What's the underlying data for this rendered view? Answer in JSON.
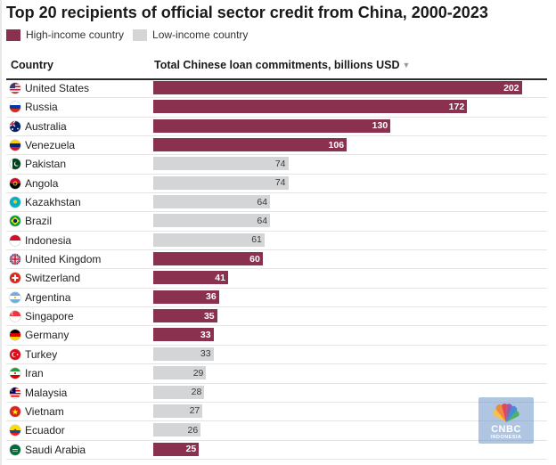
{
  "colors": {
    "high": "#8a3150",
    "low": "#d3d5d6"
  },
  "chart_data": {
    "type": "bar",
    "orientation": "horizontal",
    "title": "Top 20 recipients of official sector credit from China, 2000-2023",
    "legend": [
      {
        "key": "high",
        "label": "High-income country"
      },
      {
        "key": "low",
        "label": "Low-income country"
      }
    ],
    "columns": {
      "country": "Country",
      "value": "Total Chinese loan commitments, billions USD"
    },
    "xlim": [
      0,
      210
    ],
    "rows": [
      {
        "country": "United States",
        "value": 202,
        "group": "high",
        "flag": "flag-us-icon"
      },
      {
        "country": "Russia",
        "value": 172,
        "group": "high",
        "flag": "flag-ru-icon"
      },
      {
        "country": "Australia",
        "value": 130,
        "group": "high",
        "flag": "flag-au-icon"
      },
      {
        "country": "Venezuela",
        "value": 106,
        "group": "high",
        "flag": "flag-ve-icon"
      },
      {
        "country": "Pakistan",
        "value": 74,
        "group": "low",
        "flag": "flag-pk-icon"
      },
      {
        "country": "Angola",
        "value": 74,
        "group": "low",
        "flag": "flag-ao-icon"
      },
      {
        "country": "Kazakhstan",
        "value": 64,
        "group": "low",
        "flag": "flag-kz-icon"
      },
      {
        "country": "Brazil",
        "value": 64,
        "group": "low",
        "flag": "flag-br-icon"
      },
      {
        "country": "Indonesia",
        "value": 61,
        "group": "low",
        "flag": "flag-id-icon"
      },
      {
        "country": "United Kingdom",
        "value": 60,
        "group": "high",
        "flag": "flag-gb-icon"
      },
      {
        "country": "Switzerland",
        "value": 41,
        "group": "high",
        "flag": "flag-ch-icon"
      },
      {
        "country": "Argentina",
        "value": 36,
        "group": "high",
        "flag": "flag-ar-icon"
      },
      {
        "country": "Singapore",
        "value": 35,
        "group": "high",
        "flag": "flag-sg-icon"
      },
      {
        "country": "Germany",
        "value": 33,
        "group": "high",
        "flag": "flag-de-icon"
      },
      {
        "country": "Turkey",
        "value": 33,
        "group": "low",
        "flag": "flag-tr-icon"
      },
      {
        "country": "Iran",
        "value": 29,
        "group": "low",
        "flag": "flag-ir-icon"
      },
      {
        "country": "Malaysia",
        "value": 28,
        "group": "low",
        "flag": "flag-my-icon"
      },
      {
        "country": "Vietnam",
        "value": 27,
        "group": "low",
        "flag": "flag-vn-icon"
      },
      {
        "country": "Ecuador",
        "value": 26,
        "group": "low",
        "flag": "flag-ec-icon"
      },
      {
        "country": "Saudi Arabia",
        "value": 25,
        "group": "high",
        "flag": "flag-sa-icon"
      }
    ]
  },
  "watermark": {
    "line1": "CNBC",
    "line2": "INDONESIA"
  }
}
